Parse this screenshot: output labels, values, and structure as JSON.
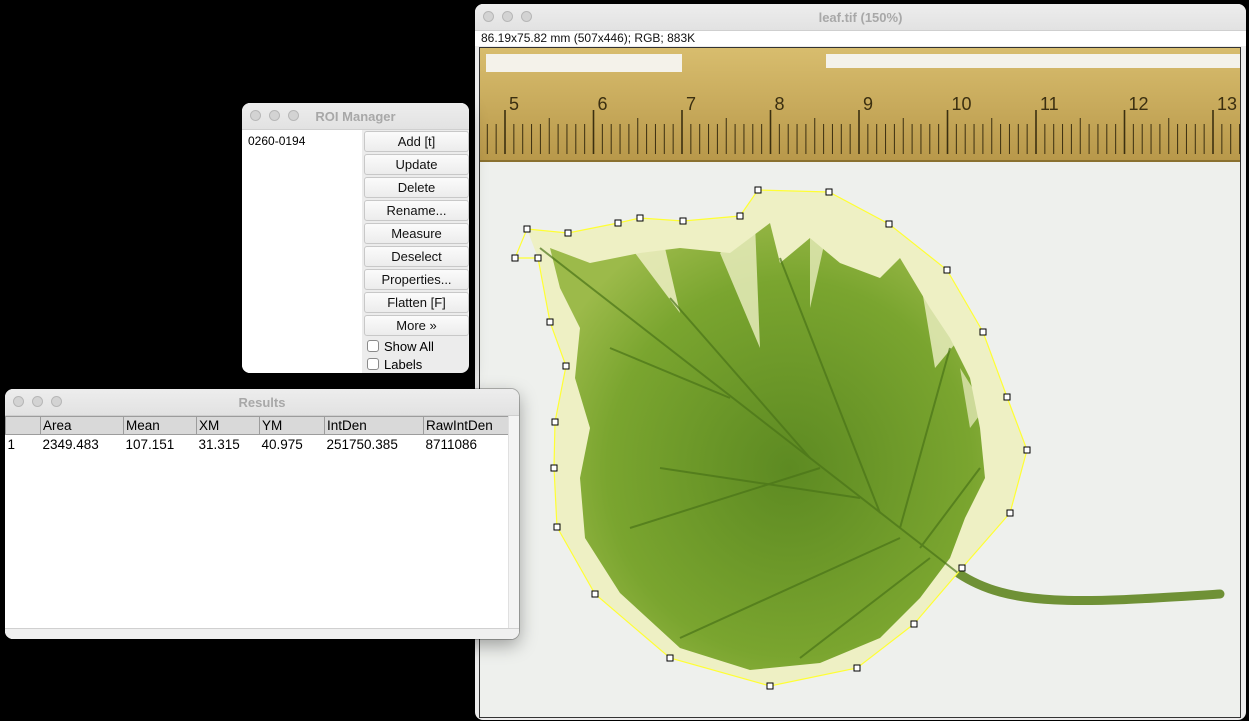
{
  "image_window": {
    "title": "leaf.tif (150%)",
    "info": "86.19x75.82 mm (507x446); RGB; 883K",
    "ruler_labels": [
      "5",
      "6",
      "7",
      "8",
      "9",
      "10",
      "11",
      "12",
      "13"
    ]
  },
  "roi_manager": {
    "title": "ROI Manager",
    "items": [
      "0260-0194"
    ],
    "buttons": [
      "Add [t]",
      "Update",
      "Delete",
      "Rename...",
      "Measure",
      "Deselect",
      "Properties...",
      "Flatten [F]",
      "More »"
    ],
    "checkboxes": [
      "Show All",
      "Labels"
    ]
  },
  "results": {
    "title": "Results",
    "columns": [
      "",
      "Area",
      "Mean",
      "XM",
      "YM",
      "IntDen",
      "RawIntDen"
    ],
    "rows": [
      [
        "1",
        "2349.483",
        "107.151",
        "31.315",
        "40.975",
        "251750.385",
        "8711086"
      ]
    ]
  },
  "colors": {
    "selection": "#ffff33",
    "leaf_green": "#6e9a2a",
    "leaf_cream": "#eef0c4",
    "ruler": "#c9a85a"
  }
}
